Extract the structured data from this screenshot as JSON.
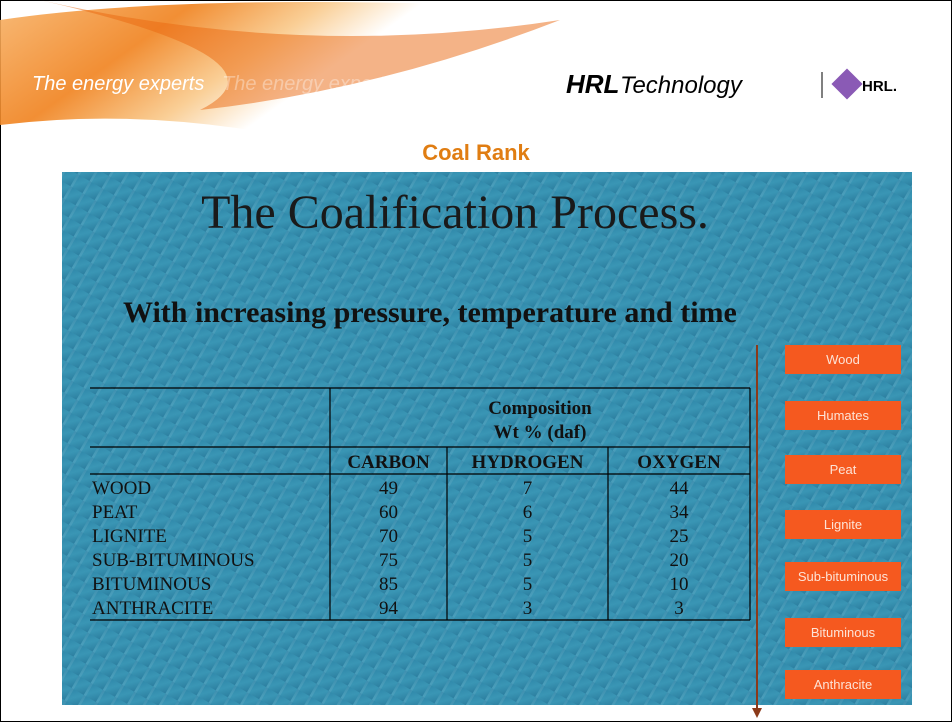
{
  "header": {
    "tagline": "The energy experts",
    "tagline_echo": "The energy experts",
    "logo_bold": "HRL",
    "logo_light": "Technology",
    "badge": "HRL."
  },
  "section_title": "Coal Rank",
  "slide": {
    "title": "The Coalification Process.",
    "subtitle": "With increasing pressure, temperature and time"
  },
  "table": {
    "group_header": [
      "Composition",
      "Wt % (daf)"
    ],
    "columns": [
      "CARBON",
      "HYDROGEN",
      "OXYGEN"
    ],
    "rows": [
      [
        "WOOD",
        49,
        7,
        44
      ],
      [
        "PEAT",
        60,
        6,
        34
      ],
      [
        "LIGNITE",
        70,
        5,
        25
      ],
      [
        "SUB-BITUMINOUS",
        75,
        5,
        20
      ],
      [
        "BITUMINOUS",
        85,
        5,
        10
      ],
      [
        "ANTHRACITE",
        94,
        3,
        3
      ]
    ]
  },
  "stages": [
    "Wood",
    "Humates",
    "Peat",
    "Lignite",
    "Sub-bituminous",
    "Bituminous",
    "Anthracite"
  ]
}
